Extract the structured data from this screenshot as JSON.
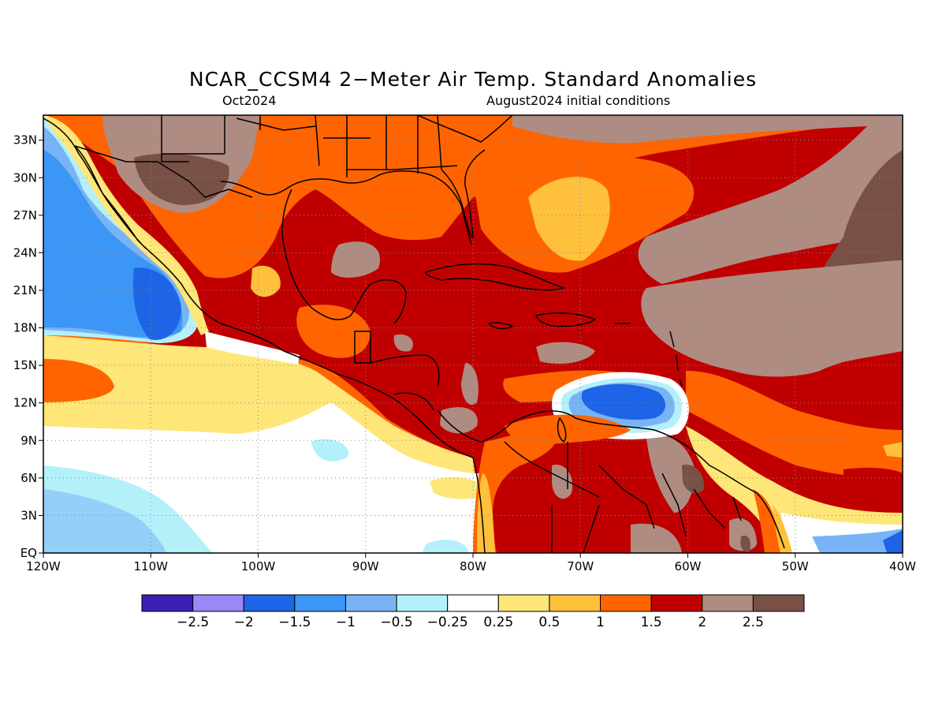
{
  "title": "NCAR_CCSM4 2−Meter Air Temp. Standard Anomalies",
  "subtitle_left": "Oct2024",
  "subtitle_right": "August2024 initial conditions",
  "axes": {
    "lat_labels": [
      "33N",
      "30N",
      "27N",
      "24N",
      "21N",
      "18N",
      "15N",
      "12N",
      "9N",
      "6N",
      "3N",
      "EQ"
    ],
    "lat_values": [
      33,
      30,
      27,
      24,
      21,
      18,
      15,
      12,
      9,
      6,
      3,
      0
    ],
    "lon_labels": [
      "120W",
      "110W",
      "100W",
      "90W",
      "80W",
      "70W",
      "60W",
      "50W",
      "40W"
    ],
    "lon_values": [
      -120,
      -110,
      -100,
      -90,
      -80,
      -70,
      -60,
      -50,
      -40
    ],
    "lat_range": [
      0,
      35
    ],
    "lon_range": [
      -120,
      -40
    ],
    "grid": "dotted"
  },
  "colorbar": {
    "colors": [
      "#3c1eb4",
      "#9b87f5",
      "#1e64e6",
      "#3c96f5",
      "#78b4f5",
      "#b4f0fa",
      "#ffffff",
      "#ffe678",
      "#ffc03c",
      "#ff6400",
      "#c00000",
      "#af8c82",
      "#785046"
    ],
    "labels": [
      "−2.5",
      "−2",
      "−1.5",
      "−1",
      "−0.5",
      "−0.25",
      "0.25",
      "0.5",
      "1",
      "1.5",
      "2",
      "2.5"
    ]
  },
  "palette": {
    "dark_blue": "#1e64e6",
    "mid_blue": "#3c96f5",
    "light_blue": "#78b4f5",
    "pale_blue": "#b4f0fa",
    "pale_yellow": "#ffe678",
    "yellow": "#ffc03c",
    "orange": "#ff6400",
    "red": "#c00000",
    "tan": "#af8c82",
    "brown": "#785046"
  }
}
